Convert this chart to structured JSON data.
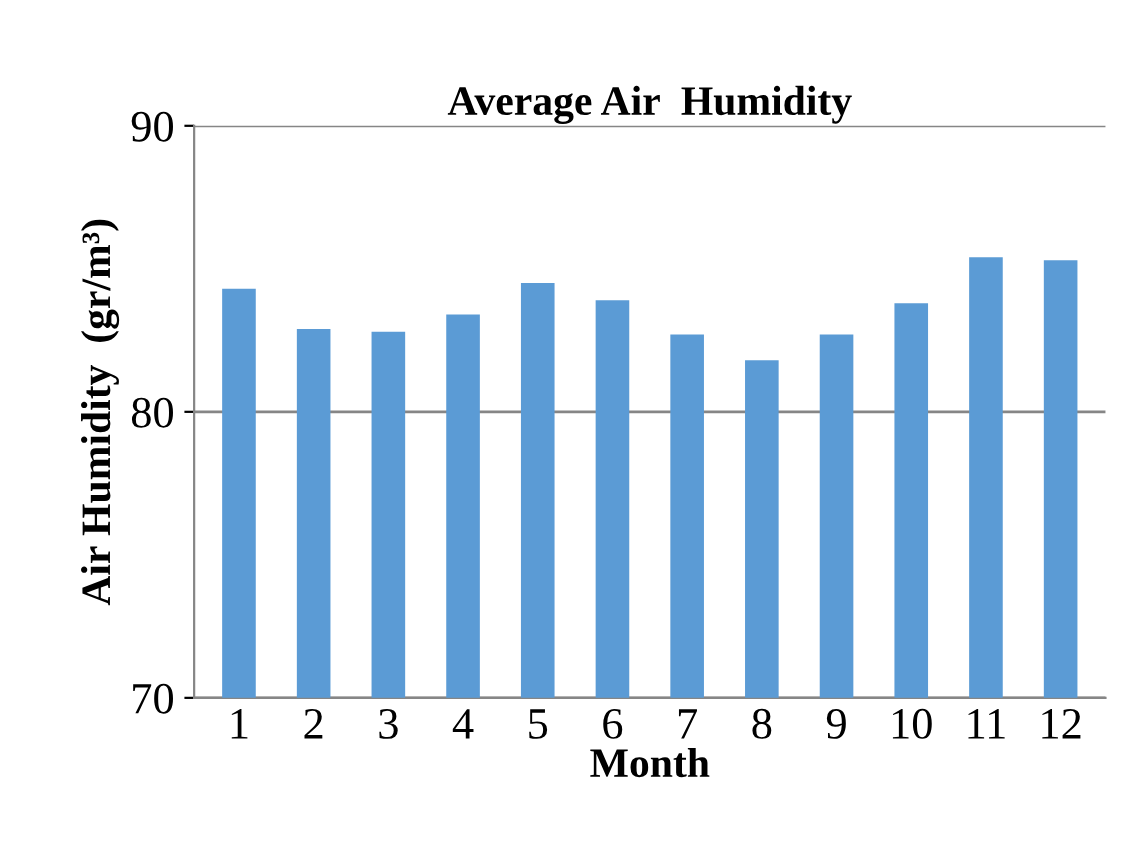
{
  "chart_data": {
    "type": "bar",
    "title": "Average Air  Humidity",
    "xlabel": "Month",
    "ylabel": "Air Humidity  (gr/m³)",
    "categories": [
      "1",
      "2",
      "3",
      "4",
      "5",
      "6",
      "7",
      "8",
      "9",
      "10",
      "11",
      "12"
    ],
    "values": [
      84.3,
      82.9,
      82.8,
      83.4,
      84.5,
      83.9,
      82.7,
      81.8,
      82.7,
      83.8,
      85.4,
      85.3
    ],
    "color": "#5b9bd5",
    "ylim": [
      70,
      90
    ],
    "yticks": [
      70,
      80,
      90
    ],
    "grid": "y"
  }
}
